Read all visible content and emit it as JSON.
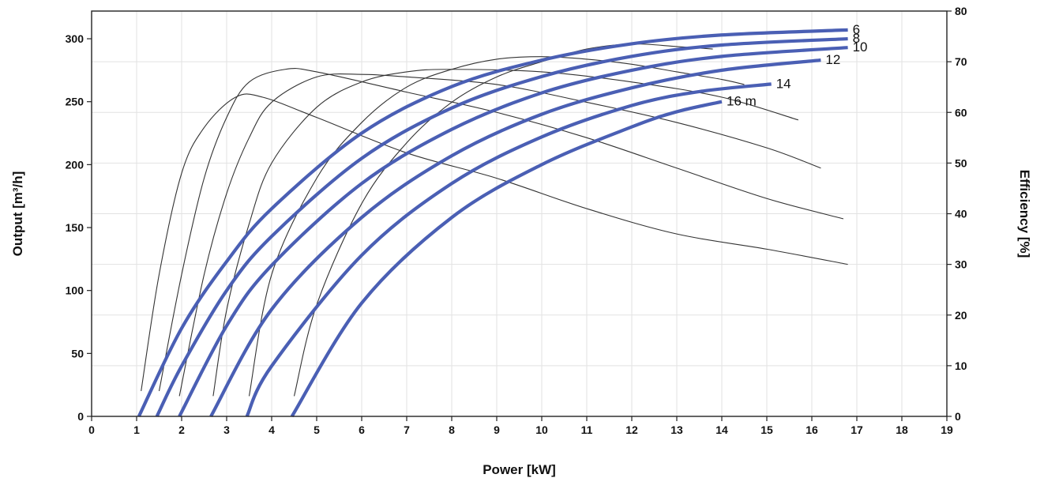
{
  "chart_data": {
    "type": "line",
    "title": "",
    "xlabel": "Power [kW]",
    "ylabel": "Output [m³/h]",
    "y2label": "Efficiency [%]",
    "xlim": [
      0,
      19
    ],
    "ylim": [
      0,
      322
    ],
    "y2lim": [
      0,
      80
    ],
    "xticks": [
      0,
      1,
      2,
      3,
      4,
      5,
      6,
      7,
      8,
      9,
      10,
      11,
      12,
      13,
      14,
      15,
      16,
      17,
      18,
      19
    ],
    "yticks": [
      0,
      50,
      100,
      150,
      200,
      250,
      300
    ],
    "y2ticks": [
      0,
      10,
      20,
      30,
      40,
      50,
      60,
      70,
      80
    ],
    "grid": true,
    "colors": {
      "output": "#4a5fb4",
      "efficiency": "#333333"
    },
    "output_series": [
      {
        "name": "6",
        "label": "6",
        "points": [
          [
            1.05,
            0
          ],
          [
            2,
            70
          ],
          [
            3,
            123
          ],
          [
            4,
            165
          ],
          [
            6,
            225
          ],
          [
            8,
            262
          ],
          [
            10,
            283
          ],
          [
            12,
            296
          ],
          [
            14,
            303
          ],
          [
            16.8,
            307
          ]
        ]
      },
      {
        "name": "8",
        "label": "8",
        "points": [
          [
            1.45,
            0
          ],
          [
            2,
            40
          ],
          [
            3,
            100
          ],
          [
            4,
            143
          ],
          [
            6,
            205
          ],
          [
            8,
            245
          ],
          [
            10,
            270
          ],
          [
            12,
            286
          ],
          [
            14,
            295
          ],
          [
            16.8,
            300
          ]
        ]
      },
      {
        "name": "10",
        "label": "10",
        "points": [
          [
            1.95,
            0
          ],
          [
            3,
            72
          ],
          [
            4,
            120
          ],
          [
            6,
            185
          ],
          [
            8,
            228
          ],
          [
            10,
            257
          ],
          [
            12,
            275
          ],
          [
            14,
            286
          ],
          [
            16.8,
            293
          ]
        ]
      },
      {
        "name": "12",
        "label": "12",
        "points": [
          [
            2.65,
            0
          ],
          [
            4,
            85
          ],
          [
            6,
            158
          ],
          [
            8,
            207
          ],
          [
            10,
            240
          ],
          [
            12,
            261
          ],
          [
            14,
            275
          ],
          [
            16.2,
            283
          ]
        ]
      },
      {
        "name": "14",
        "label": "14",
        "points": [
          [
            3.45,
            0
          ],
          [
            4,
            40
          ],
          [
            6,
            128
          ],
          [
            8,
            185
          ],
          [
            10,
            222
          ],
          [
            12,
            247
          ],
          [
            13.5,
            258
          ],
          [
            15.1,
            264
          ]
        ]
      },
      {
        "name": "16 m",
        "label": "16 m",
        "points": [
          [
            4.45,
            0
          ],
          [
            6,
            90
          ],
          [
            8,
            158
          ],
          [
            10,
            200
          ],
          [
            12,
            230
          ],
          [
            13,
            242
          ],
          [
            14,
            250
          ]
        ]
      }
    ],
    "efficiency_series": [
      {
        "points": [
          [
            1.1,
            5
          ],
          [
            1.5,
            28
          ],
          [
            2,
            48
          ],
          [
            2.5,
            57
          ],
          [
            3.2,
            63
          ],
          [
            3.8,
            63
          ],
          [
            5,
            59
          ],
          [
            7,
            52
          ],
          [
            9,
            47
          ],
          [
            11,
            41
          ],
          [
            13,
            36
          ],
          [
            15,
            33
          ],
          [
            16.8,
            30
          ]
        ]
      },
      {
        "points": [
          [
            1.5,
            5
          ],
          [
            2,
            28
          ],
          [
            2.5,
            47
          ],
          [
            3,
            59
          ],
          [
            3.5,
            66
          ],
          [
            4.3,
            68.5
          ],
          [
            5,
            68
          ],
          [
            7,
            64
          ],
          [
            9,
            60
          ],
          [
            11,
            55
          ],
          [
            13,
            49
          ],
          [
            15,
            43
          ],
          [
            16.7,
            39
          ]
        ]
      },
      {
        "points": [
          [
            1.95,
            4
          ],
          [
            2.5,
            28
          ],
          [
            3,
            44
          ],
          [
            3.5,
            55
          ],
          [
            4,
            62
          ],
          [
            5,
            67
          ],
          [
            6,
            67.5
          ],
          [
            7,
            67
          ],
          [
            9,
            65.5
          ],
          [
            11,
            62
          ],
          [
            13,
            58
          ],
          [
            15,
            53
          ],
          [
            16.2,
            49
          ]
        ]
      },
      {
        "points": [
          [
            2.7,
            4
          ],
          [
            3,
            21
          ],
          [
            3.5,
            38
          ],
          [
            4,
            50
          ],
          [
            5,
            61
          ],
          [
            6,
            66
          ],
          [
            7,
            68
          ],
          [
            8,
            68.5
          ],
          [
            10,
            68
          ],
          [
            12,
            66
          ],
          [
            14,
            63
          ],
          [
            15.7,
            58.5
          ]
        ]
      },
      {
        "points": [
          [
            3.5,
            4
          ],
          [
            4,
            28
          ],
          [
            5,
            47
          ],
          [
            6,
            58
          ],
          [
            7,
            65
          ],
          [
            8,
            68.5
          ],
          [
            9,
            70.5
          ],
          [
            10,
            71
          ],
          [
            11,
            70.5
          ],
          [
            12,
            69.5
          ],
          [
            13,
            68
          ],
          [
            14,
            66.5
          ],
          [
            14.5,
            65.5
          ]
        ]
      },
      {
        "points": [
          [
            4.5,
            4
          ],
          [
            5,
            22
          ],
          [
            6,
            42
          ],
          [
            7,
            54
          ],
          [
            8,
            62
          ],
          [
            9,
            67
          ],
          [
            10,
            70
          ],
          [
            11,
            72.5
          ],
          [
            12,
            73.5
          ],
          [
            13,
            73
          ],
          [
            13.8,
            72.5
          ]
        ]
      }
    ]
  }
}
